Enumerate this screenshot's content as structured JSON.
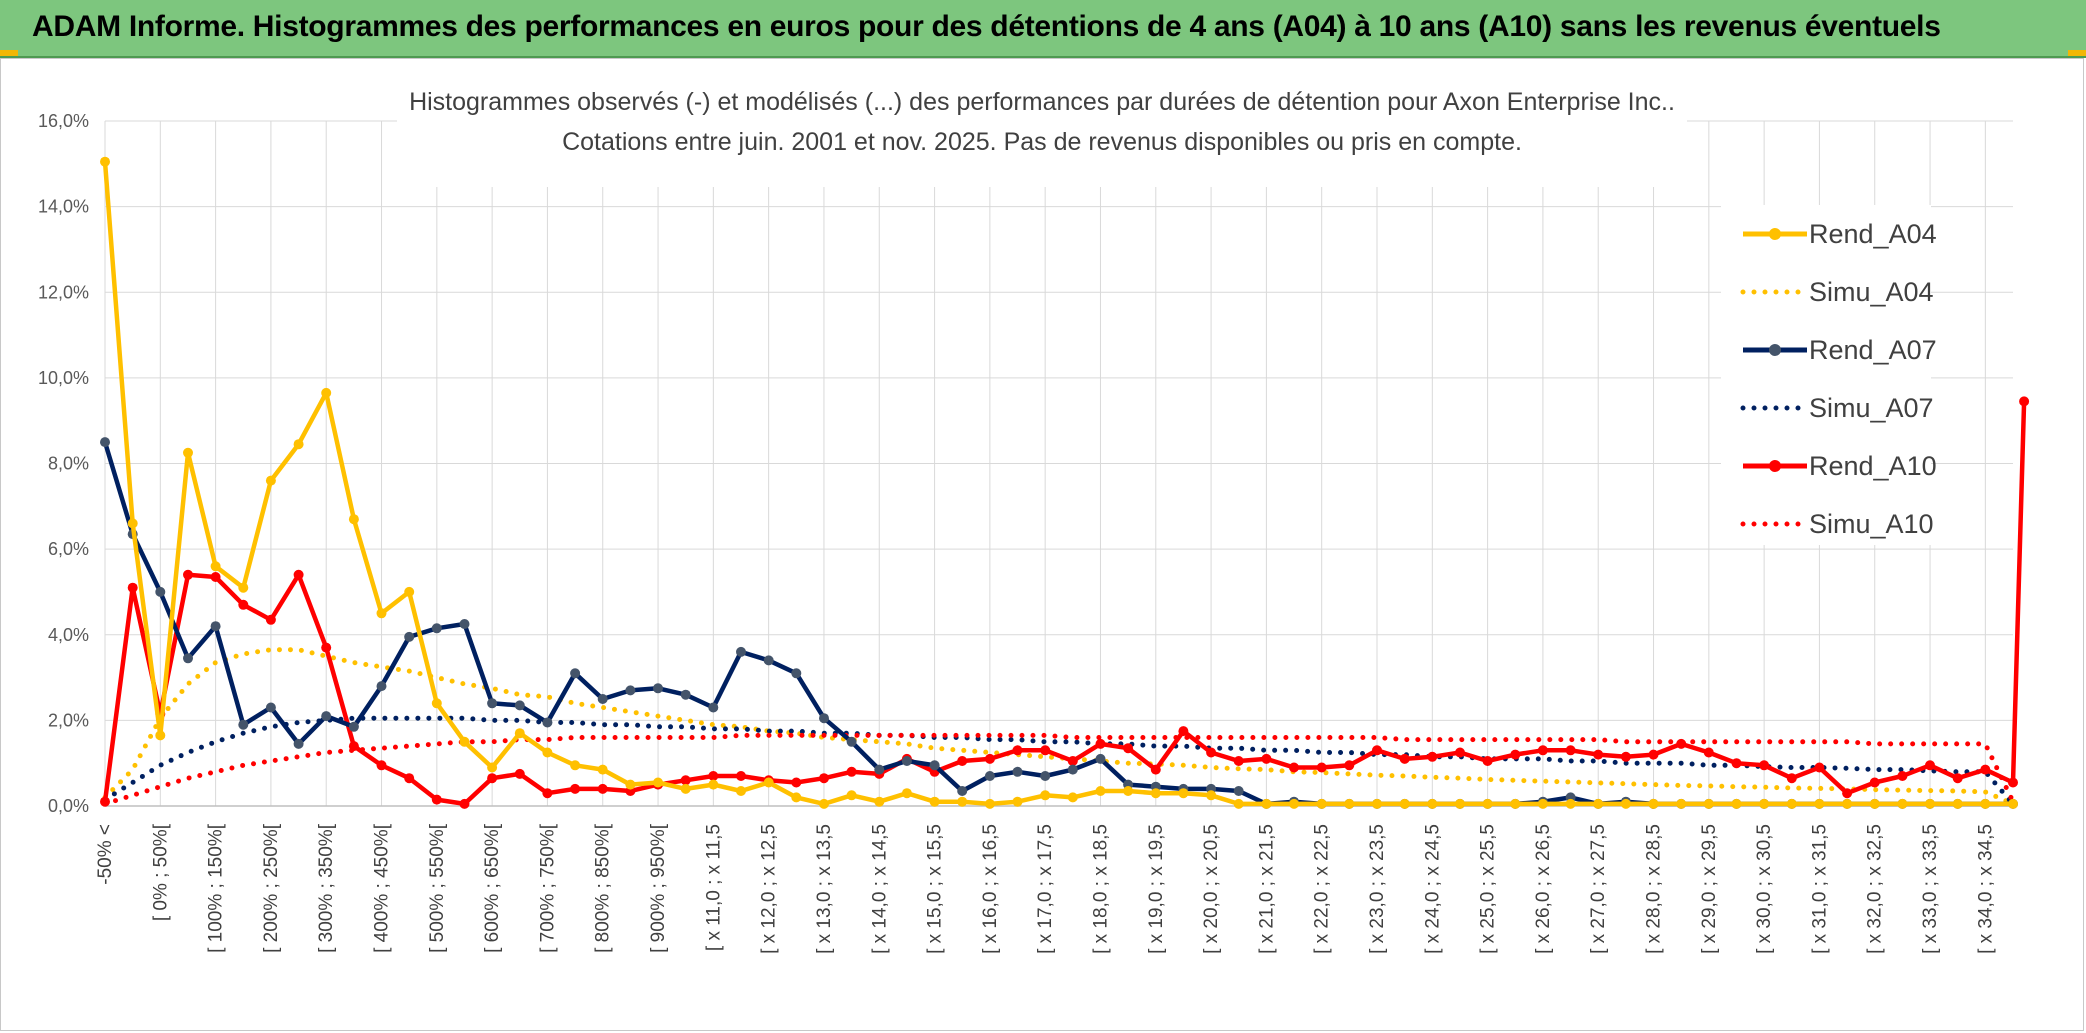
{
  "header": {
    "title": "ADAM Informe. Histogrammes des performances en euros pour des détentions de 4 ans (A04) à 10 ans (A10) sans les revenus éventuels"
  },
  "colors": {
    "header_bg": "#7dc67e",
    "rend_a04": "#ffc000",
    "rend_a07": "#002060",
    "rend_a07_marker": "#44546a",
    "rend_a10": "#ff0000",
    "grid": "#d9d9d9"
  },
  "chart_data": {
    "type": "line",
    "title": "Histogrammes observés (-) et modélisés (...) des performances par durées de détention pour Axon Enterprise Inc..",
    "subtitle": "Cotations entre juin. 2001 et nov. 2025. Pas de revenus disponibles ou pris en compte.",
    "ylim": [
      0,
      16
    ],
    "yticks": [
      "0,0%",
      "2,0%",
      "4,0%",
      "6,0%",
      "8,0%",
      "10,0%",
      "12,0%",
      "14,0%",
      "16,0%"
    ],
    "legend_position": "right",
    "x_tick_labels": [
      "-50% <",
      "[ 0% ; 50%[",
      "[ 100% ; 150%[",
      "[ 200% ; 250%[",
      "[ 300% ; 350%[",
      "[ 400% ; 450%[",
      "[ 500% ; 550%[",
      "[ 600% ; 650%[",
      "[ 700% ; 750%[",
      "[ 800% ; 850%[",
      "[ 900% ; 950%[",
      "[ x 11,0 ; x 11,5",
      "[ x 12,0 ; x 12,5",
      "[ x 13,0 ; x 13,5",
      "[ x 14,0 ; x 14,5",
      "[ x 15,0 ; x 15,5",
      "[ x 16,0 ; x 16,5",
      "[ x 17,0 ; x 17,5",
      "[ x 18,0 ; x 18,5",
      "[ x 19,0 ; x 19,5",
      "[ x 20,0 ; x 20,5",
      "[ x 21,0 ; x 21,5",
      "[ x 22,0 ; x 22,5",
      "[ x 23,0 ; x 23,5",
      "[ x 24,0 ; x 24,5",
      "[ x 25,0 ; x 25,5",
      "[ x 26,0 ; x 26,5",
      "[ x 27,0 ; x 27,5",
      "[ x 28,0 ; x 28,5",
      "[ x 29,0 ; x 29,5",
      "[ x 30,0 ; x 30,5",
      "[ x 31,0 ; x 31,5",
      "[ x 32,0 ; x 32,5",
      "[ x 33,0 ; x 33,5",
      "[ x 34,0 ; x 34,5"
    ],
    "n_categories": 70,
    "series": [
      {
        "name": "Rend_A04",
        "style": "solid",
        "color": "#ffc000",
        "values": [
          15.05,
          6.6,
          1.65,
          8.25,
          5.6,
          5.1,
          7.6,
          8.45,
          9.65,
          6.7,
          4.5,
          5.0,
          2.4,
          1.5,
          0.9,
          1.7,
          1.25,
          0.95,
          0.85,
          0.5,
          0.55,
          0.4,
          0.5,
          0.35,
          0.55,
          0.2,
          0.05,
          0.25,
          0.1,
          0.3,
          0.1,
          0.1,
          0.05,
          0.1,
          0.25,
          0.2,
          0.35,
          0.35,
          0.3,
          0.3,
          0.25,
          0.05,
          0.05,
          0.05,
          0.05,
          0.05,
          0.05,
          0.05,
          0.05,
          0.05,
          0.05,
          0.05,
          0.05,
          0.05,
          0.05,
          0.05,
          0.05,
          0.05,
          0.05,
          0.05,
          0.05,
          0.05,
          0.05,
          0.05,
          0.05,
          0.05,
          0.05,
          0.05,
          0.05,
          0.05
        ]
      },
      {
        "name": "Simu_A04",
        "style": "dotted",
        "color": "#ffc000",
        "values": [
          0.2,
          0.85,
          2.05,
          2.85,
          3.35,
          3.55,
          3.65,
          3.65,
          3.5,
          3.35,
          3.25,
          3.15,
          3.0,
          2.85,
          2.75,
          2.6,
          2.55,
          2.4,
          2.3,
          2.2,
          2.1,
          2.0,
          1.9,
          1.85,
          1.75,
          1.7,
          1.6,
          1.55,
          1.5,
          1.45,
          1.35,
          1.3,
          1.25,
          1.2,
          1.15,
          1.1,
          1.05,
          1.0,
          0.98,
          0.95,
          0.9,
          0.87,
          0.85,
          0.8,
          0.78,
          0.75,
          0.72,
          0.7,
          0.67,
          0.65,
          0.62,
          0.6,
          0.58,
          0.56,
          0.54,
          0.52,
          0.5,
          0.48,
          0.47,
          0.45,
          0.44,
          0.42,
          0.41,
          0.4,
          0.38,
          0.37,
          0.36,
          0.35,
          0.33,
          0.05
        ]
      },
      {
        "name": "Rend_A07",
        "style": "solid",
        "color": "#002060",
        "values": [
          8.5,
          6.35,
          5.0,
          3.45,
          4.2,
          1.9,
          2.3,
          1.45,
          2.1,
          1.85,
          2.8,
          3.95,
          4.15,
          4.25,
          2.4,
          2.35,
          1.95,
          3.1,
          2.5,
          2.7,
          2.75,
          2.6,
          2.3,
          3.6,
          3.4,
          3.1,
          2.05,
          1.5,
          0.85,
          1.05,
          0.95,
          0.35,
          0.7,
          0.8,
          0.7,
          0.85,
          1.1,
          0.5,
          0.45,
          0.4,
          0.4,
          0.35,
          0.05,
          0.1,
          0.05,
          0.05,
          0.05,
          0.05,
          0.05,
          0.05,
          0.05,
          0.05,
          0.1,
          0.2,
          0.05,
          0.1,
          0.05,
          0.05,
          0.05,
          0.05,
          0.05,
          0.05,
          0.05,
          0.05,
          0.05,
          0.05,
          0.05,
          0.05,
          0.05,
          0.05
        ]
      },
      {
        "name": "Simu_A07",
        "style": "dotted",
        "color": "#002060",
        "values": [
          0.15,
          0.55,
          0.95,
          1.25,
          1.5,
          1.7,
          1.85,
          1.95,
          2.0,
          2.05,
          2.05,
          2.05,
          2.05,
          2.05,
          2.0,
          2.0,
          1.95,
          1.95,
          1.9,
          1.9,
          1.85,
          1.85,
          1.8,
          1.8,
          1.75,
          1.75,
          1.7,
          1.7,
          1.65,
          1.65,
          1.6,
          1.6,
          1.55,
          1.55,
          1.5,
          1.5,
          1.45,
          1.45,
          1.4,
          1.4,
          1.35,
          1.35,
          1.3,
          1.3,
          1.25,
          1.25,
          1.2,
          1.2,
          1.15,
          1.15,
          1.1,
          1.1,
          1.1,
          1.05,
          1.05,
          1.0,
          1.0,
          1.0,
          0.95,
          0.95,
          0.92,
          0.9,
          0.9,
          0.88,
          0.85,
          0.85,
          0.82,
          0.8,
          0.8,
          0.05
        ]
      },
      {
        "name": "Rend_A10",
        "style": "solid",
        "color": "#ff0000",
        "values": [
          0.1,
          5.1,
          2.15,
          5.4,
          5.35,
          4.7,
          4.35,
          5.4,
          3.7,
          1.4,
          0.95,
          0.65,
          0.15,
          0.05,
          0.65,
          0.75,
          0.3,
          0.4,
          0.4,
          0.35,
          0.5,
          0.6,
          0.7,
          0.7,
          0.6,
          0.55,
          0.65,
          0.8,
          0.75,
          1.1,
          0.8,
          1.05,
          1.1,
          1.3,
          1.3,
          1.05,
          1.45,
          1.35,
          0.85,
          1.75,
          1.25,
          1.05,
          1.1,
          0.9,
          0.9,
          0.95,
          1.3,
          1.1,
          1.15,
          1.25,
          1.05,
          1.2,
          1.3,
          1.3,
          1.2,
          1.15,
          1.2,
          1.45,
          1.25,
          1.0,
          0.95,
          0.65,
          0.9,
          0.3,
          0.55,
          0.7,
          0.95,
          0.65,
          0.85,
          0.55
        ]
      },
      {
        "name": "Simu_A10",
        "style": "dotted",
        "color": "#ff0000",
        "values": [
          0.05,
          0.25,
          0.45,
          0.65,
          0.8,
          0.95,
          1.05,
          1.15,
          1.25,
          1.3,
          1.35,
          1.4,
          1.45,
          1.5,
          1.5,
          1.55,
          1.55,
          1.6,
          1.6,
          1.6,
          1.6,
          1.6,
          1.6,
          1.65,
          1.65,
          1.65,
          1.65,
          1.65,
          1.65,
          1.65,
          1.65,
          1.65,
          1.65,
          1.65,
          1.65,
          1.6,
          1.6,
          1.6,
          1.6,
          1.6,
          1.6,
          1.6,
          1.6,
          1.6,
          1.6,
          1.6,
          1.6,
          1.55,
          1.55,
          1.55,
          1.55,
          1.55,
          1.55,
          1.55,
          1.55,
          1.5,
          1.5,
          1.5,
          1.5,
          1.5,
          1.5,
          1.5,
          1.5,
          1.5,
          1.45,
          1.45,
          1.45,
          1.45,
          1.45,
          0.1
        ]
      }
    ],
    "extra_points": [
      {
        "series": "Rend_A10",
        "category_index": 70,
        "value": 9.45
      }
    ]
  }
}
